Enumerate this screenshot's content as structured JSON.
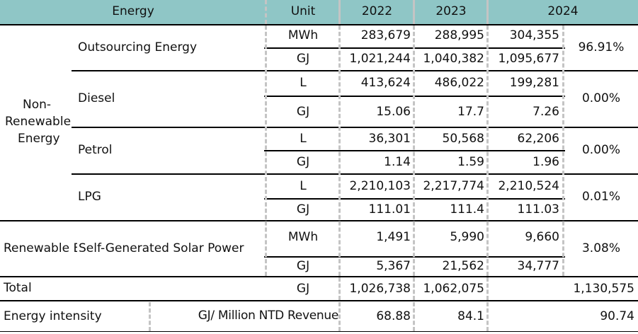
{
  "header": {
    "energy": "Energy",
    "unit": "Unit",
    "y2022": "2022",
    "y2023": "2023",
    "y2024": "2024"
  },
  "groups": {
    "non_renewable": "Non-\nRenewable\nEnergy",
    "renewable": "Renewable E"
  },
  "rows": {
    "outsourcing": {
      "label": "Outsourcing Energy",
      "mwh": {
        "unit": "MWh",
        "v2022": "283,679",
        "v2023": "288,995",
        "v2024": "304,355"
      },
      "gj": {
        "unit": "GJ",
        "v2022": "1,021,244",
        "v2023": "1,040,382",
        "v2024": "1,095,677"
      },
      "share": "96.91%"
    },
    "diesel": {
      "label": "Diesel",
      "l": {
        "unit": "L",
        "v2022": "413,624",
        "v2023": "486,022",
        "v2024": "199,281"
      },
      "gj": {
        "unit": "GJ",
        "v2022": "15.06",
        "v2023": "17.7",
        "v2024": "7.26"
      },
      "share": "0.00%"
    },
    "petrol": {
      "label": "Petrol",
      "l": {
        "unit": "L",
        "v2022": "36,301",
        "v2023": "50,568",
        "v2024": "62,206"
      },
      "gj": {
        "unit": "GJ",
        "v2022": "1.14",
        "v2023": "1.59",
        "v2024": "1.96"
      },
      "share": "0.00%"
    },
    "lpg": {
      "label": "LPG",
      "l": {
        "unit": "L",
        "v2022": "2,210,103",
        "v2023": "2,217,774",
        "v2024": "2,210,524"
      },
      "gj": {
        "unit": "GJ",
        "v2022": "111.01",
        "v2023": "111.4",
        "v2024": "111.03"
      },
      "share": "0.01%"
    },
    "solar": {
      "label": "Self-Generated Solar Power",
      "mwh": {
        "unit": "MWh",
        "v2022": "1,491",
        "v2023": "5,990",
        "v2024": "9,660"
      },
      "gj": {
        "unit": "GJ",
        "v2022": "5,367",
        "v2023": "21,562",
        "v2024": "34,777"
      },
      "share": "3.08%"
    }
  },
  "total": {
    "label": "Total",
    "unit": "GJ",
    "v2022": "1,026,738",
    "v2023": "1,062,075",
    "v2024": "1,130,575"
  },
  "intensity": {
    "label": "Energy intensity",
    "unit": "GJ/ Million NTD Revenue",
    "v2022": "68.88",
    "v2023": "84.1",
    "v2024": "90.74"
  },
  "colors": {
    "header_bg": "#8fc6c6",
    "rule": "#000000",
    "dashed_divider": "#c4c4c4"
  }
}
